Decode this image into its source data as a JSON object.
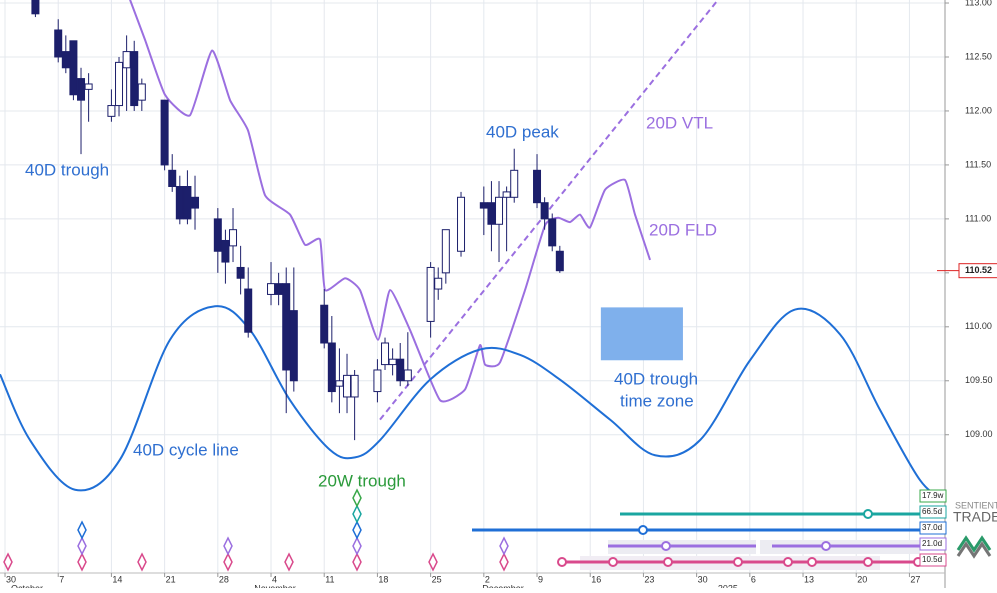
{
  "chart_data": {
    "type": "candlestick",
    "xlim": [
      -0.66,
      123.68
    ],
    "ylim": [
      107.58,
      113.028
    ],
    "xticks": [
      {
        "value": 0,
        "label": "30"
      },
      {
        "value": 7,
        "label": "7"
      },
      {
        "value": 14,
        "label": "14"
      },
      {
        "value": 21,
        "label": "21"
      },
      {
        "value": 28,
        "label": "28"
      },
      {
        "value": 35,
        "label": "4"
      },
      {
        "value": 42,
        "label": "11"
      },
      {
        "value": 49,
        "label": "18"
      },
      {
        "value": 56,
        "label": "25"
      },
      {
        "value": 63,
        "label": "2"
      },
      {
        "value": 70,
        "label": "9"
      },
      {
        "value": 77,
        "label": "16"
      },
      {
        "value": 84,
        "label": "23"
      },
      {
        "value": 91,
        "label": "30"
      },
      {
        "value": 98,
        "label": "6"
      },
      {
        "value": 105,
        "label": "13"
      },
      {
        "value": 112,
        "label": "20"
      },
      {
        "value": 119,
        "label": "27"
      }
    ],
    "month_labels": [
      {
        "value": 0,
        "label": "October"
      },
      {
        "value": 32,
        "label": "November"
      },
      {
        "value": 62,
        "label": "December"
      },
      {
        "value": 93,
        "label": "2025"
      }
    ],
    "yticks": [
      {
        "value": 113,
        "label": "113.00"
      },
      {
        "value": 112.5,
        "label": "112.50"
      },
      {
        "value": 112,
        "label": "112.00"
      },
      {
        "value": 111.5,
        "label": "111.50"
      },
      {
        "value": 111,
        "label": "111.00"
      },
      {
        "value": 110.5,
        "label": "110.50"
      },
      {
        "value": 110,
        "label": "110.00"
      },
      {
        "value": 109.5,
        "label": "109.50"
      },
      {
        "value": 109,
        "label": "109.00"
      }
    ],
    "grid": true,
    "last_price": {
      "value": 110.52,
      "label": "110.52"
    },
    "candles": {
      "up_color": "#ffffff",
      "down_color": "#1c1f6b",
      "x": [
        4,
        7,
        8,
        9,
        10,
        11,
        14,
        15,
        16,
        17,
        18,
        21,
        22,
        23,
        24,
        25,
        28,
        29,
        30,
        31,
        32,
        35,
        36,
        37,
        38,
        42,
        43,
        44,
        45,
        46,
        49,
        50,
        51,
        52,
        53,
        56,
        57,
        58,
        60,
        63,
        64,
        65,
        66,
        67,
        70,
        71,
        72,
        73
      ],
      "open": [
        113.05,
        112.75,
        112.55,
        112.65,
        112.3,
        112.2,
        111.95,
        112.05,
        112.4,
        112.55,
        112.1,
        112.1,
        111.45,
        111.3,
        111.3,
        111.2,
        111.0,
        110.8,
        110.75,
        110.55,
        110.35,
        110.3,
        110.4,
        110.4,
        110.15,
        110.2,
        109.85,
        109.45,
        109.35,
        109.35,
        109.4,
        109.65,
        109.65,
        109.7,
        109.5,
        110.05,
        110.35,
        110.5,
        110.7,
        111.15,
        111.15,
        110.95,
        111.2,
        111.2,
        111.45,
        111.15,
        111.0,
        110.7
      ],
      "high": [
        113.05,
        112.85,
        112.7,
        112.65,
        112.4,
        112.35,
        112.2,
        112.5,
        112.7,
        112.65,
        112.3,
        112.1,
        111.6,
        111.4,
        111.45,
        111.4,
        111.1,
        110.9,
        111.1,
        110.75,
        110.55,
        110.6,
        110.5,
        110.55,
        110.55,
        110.35,
        110.1,
        109.8,
        109.75,
        109.6,
        109.7,
        109.9,
        109.8,
        109.85,
        109.95,
        110.6,
        110.55,
        110.9,
        111.25,
        111.3,
        111.35,
        111.35,
        111.3,
        111.65,
        111.6,
        111.2,
        111.05,
        110.75
      ],
      "low": [
        112.87,
        112.45,
        112.35,
        112.1,
        111.6,
        111.9,
        111.9,
        111.95,
        112.0,
        112.0,
        112.0,
        111.45,
        111.25,
        110.95,
        110.95,
        110.9,
        110.5,
        110.4,
        110.6,
        110.3,
        109.9,
        110.2,
        110.2,
        109.2,
        109.4,
        109.8,
        109.3,
        109.2,
        109.2,
        108.95,
        109.3,
        109.6,
        109.55,
        109.45,
        109.45,
        109.9,
        110.25,
        110.4,
        110.65,
        110.85,
        110.7,
        110.6,
        110.7,
        111.15,
        111.1,
        110.9,
        110.7,
        110.5
      ],
      "close": [
        112.9,
        112.5,
        112.4,
        112.15,
        112.1,
        112.25,
        112.05,
        112.45,
        112.55,
        112.05,
        112.25,
        111.5,
        111.3,
        111.0,
        111.0,
        111.1,
        110.7,
        110.6,
        110.9,
        110.45,
        109.95,
        110.4,
        110.3,
        109.6,
        109.5,
        109.85,
        109.4,
        109.5,
        109.55,
        109.55,
        109.6,
        109.85,
        109.7,
        109.5,
        109.6,
        110.55,
        110.45,
        110.9,
        111.2,
        111.1,
        110.95,
        111.2,
        111.25,
        111.45,
        111.15,
        111.0,
        110.75,
        110.52
      ]
    },
    "lines": [
      {
        "name": "20D FLD",
        "color": "#9b6fe0",
        "dash": false,
        "x": [
          16.45,
          18.42,
          21.05,
          24.34,
          27.24,
          29.61,
          31.97,
          34.21,
          37.5,
          39.47,
          41.45,
          42.11,
          44.74,
          46.71,
          49.08,
          50.66,
          53.29,
          57.24,
          60.53,
          62.5,
          63.16,
          65.13,
          68.42,
          71.05,
          72.76,
          74.34,
          75.66,
          76.97,
          78.95,
          81.58,
          82.89,
          84.87
        ],
        "y": [
          113.03,
          112.66,
          112.15,
          111.96,
          112.56,
          112.1,
          111.82,
          111.22,
          111.04,
          110.76,
          110.81,
          110.34,
          110.45,
          110.34,
          109.88,
          110.34,
          109.97,
          109.32,
          109.42,
          109.83,
          109.65,
          109.67,
          110.34,
          110.94,
          111.01,
          110.97,
          111.04,
          110.92,
          111.27,
          111.36,
          111.04,
          110.62
        ]
      },
      {
        "name": "40D cycle line",
        "color": "#1f6fd6",
        "dash": false,
        "x": [
          -0.66,
          3.29,
          9.21,
          15.13,
          21.71,
          27.63,
          32.24,
          37.5,
          42.76,
          46.05,
          49.34,
          55.92,
          62.5,
          67.76,
          73.03,
          79.61,
          85.53,
          91.45,
          98.03,
          103.95,
          109.87,
          115.13,
          120.39,
          123.6
        ],
        "y": [
          109.56,
          108.95,
          108.49,
          108.77,
          109.88,
          110.19,
          109.97,
          109.32,
          108.86,
          108.79,
          108.95,
          109.51,
          109.79,
          109.74,
          109.51,
          109.14,
          108.81,
          108.95,
          109.69,
          110.16,
          109.93,
          109.23,
          108.58,
          108.4
        ]
      },
      {
        "name": "20D VTL",
        "color": "#9b6fe0",
        "dash": true,
        "x": [
          49.34,
          93.82
        ],
        "y": [
          109.14,
          113.03
        ]
      }
    ],
    "zone": {
      "x": [
        78.4,
        89.2
      ],
      "y": [
        109.69,
        110.18
      ],
      "color": "#7fb0ec"
    },
    "annotations": [
      {
        "text": "40D trough",
        "color": "#2f6fd0"
      },
      {
        "text": "40D peak",
        "color": "#2f6fd0"
      },
      {
        "text": "20D VTL",
        "color": "#9b6fe0"
      },
      {
        "text": "20D FLD",
        "color": "#9b6fe0"
      },
      {
        "text": "40D trough",
        "color": "#2f6fd0"
      },
      {
        "text": "time zone",
        "color": "#2f6fd0"
      },
      {
        "text": "40D cycle line",
        "color": "#2f6fd0"
      },
      {
        "text": "20W trough",
        "color": "#2a9a3a"
      }
    ],
    "cycle_labels": [
      {
        "label": "17.9w",
        "color": "#3aa84a"
      },
      {
        "label": "66.5d",
        "color": "#1aa6a0"
      },
      {
        "label": "37.0d",
        "color": "#1f6fd6"
      },
      {
        "label": "21.0d",
        "color": "#9b6fe0"
      },
      {
        "label": "10.5d",
        "color": "#d94a8c"
      }
    ],
    "logo": [
      "SENTIENT",
      "TRADE"
    ]
  }
}
